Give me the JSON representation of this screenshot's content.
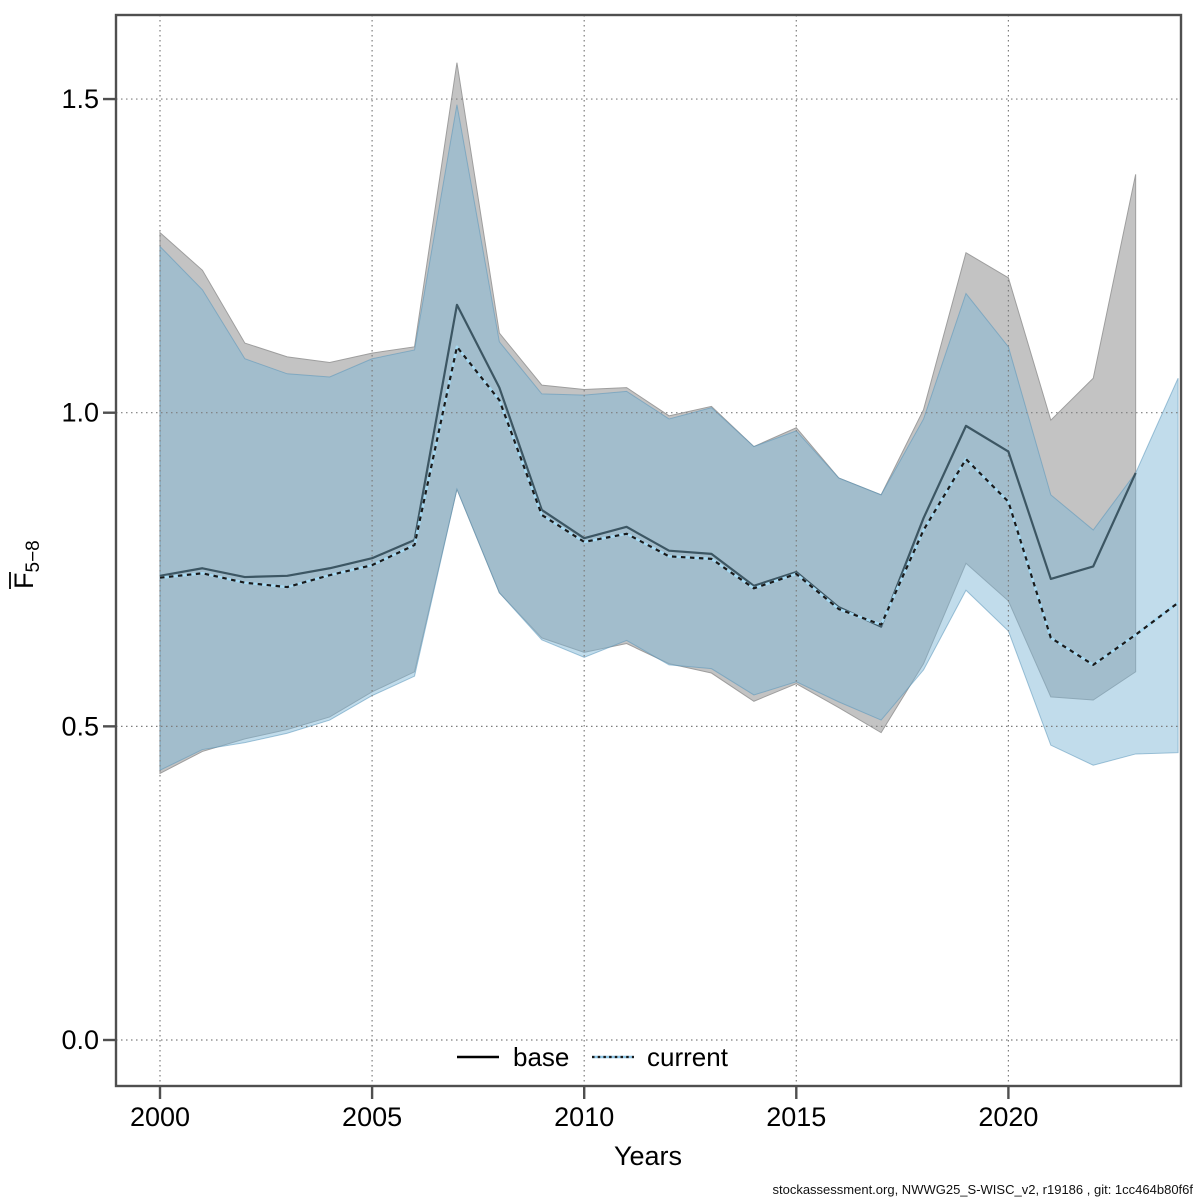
{
  "figure": {
    "xlabel": "Years",
    "ylabel": {
      "letter": "F",
      "bar": true,
      "sub": "5−8"
    },
    "footer": "stockassessment.org, NWWG25_S-WISC_v2, r19186 , git: 1cc464b80f6f",
    "legend": {
      "base": "base",
      "current": "current"
    }
  },
  "chart_data": {
    "type": "line",
    "title": "",
    "xlabel": "Years",
    "ylabel": "Fbar(5-8)",
    "xlim": [
      1998.9,
      2024.6
    ],
    "ylim": [
      -0.07,
      1.63
    ],
    "x_ticks": [
      2000,
      2005,
      2010,
      2015,
      2020
    ],
    "y_ticks": [
      0.0,
      0.5,
      1.0,
      1.5
    ],
    "grid": true,
    "grid_style": "dotted",
    "legend_position": "bottom-center",
    "series": [
      {
        "name": "base",
        "line_style": "solid",
        "band": "grey",
        "years": [
          2000,
          2001,
          2002,
          2003,
          2004,
          2005,
          2006,
          2007,
          2008,
          2009,
          2010,
          2011,
          2012,
          2013,
          2014,
          2015,
          2016,
          2017,
          2018,
          2019,
          2020,
          2021,
          2022,
          2023
        ],
        "values": [
          0.74,
          0.752,
          0.738,
          0.74,
          0.752,
          0.768,
          0.797,
          1.172,
          1.04,
          0.845,
          0.8,
          0.818,
          0.78,
          0.775,
          0.724,
          0.746,
          0.69,
          0.659,
          0.832,
          0.979,
          0.938,
          0.735,
          0.755,
          0.904
        ],
        "lower": [
          0.425,
          0.46,
          0.48,
          0.495,
          0.515,
          0.555,
          0.587,
          0.878,
          0.713,
          0.641,
          0.618,
          0.632,
          0.6,
          0.585,
          0.54,
          0.568,
          0.53,
          0.49,
          0.6,
          0.76,
          0.7,
          0.547,
          0.542,
          0.587
        ],
        "upper": [
          1.287,
          1.227,
          1.111,
          1.089,
          1.08,
          1.095,
          1.105,
          1.558,
          1.127,
          1.044,
          1.037,
          1.04,
          0.995,
          1.01,
          0.946,
          0.976,
          0.896,
          0.869,
          1.005,
          1.255,
          1.215,
          0.988,
          1.055,
          1.38
        ]
      },
      {
        "name": "current",
        "line_style": "dotted",
        "band": "blue",
        "years": [
          2000,
          2001,
          2002,
          2003,
          2004,
          2005,
          2006,
          2007,
          2008,
          2009,
          2010,
          2011,
          2012,
          2013,
          2014,
          2015,
          2016,
          2017,
          2018,
          2019,
          2020,
          2021,
          2022,
          2023,
          2024
        ],
        "values": [
          0.737,
          0.744,
          0.729,
          0.722,
          0.741,
          0.757,
          0.789,
          1.105,
          1.02,
          0.837,
          0.794,
          0.807,
          0.771,
          0.767,
          0.72,
          0.743,
          0.687,
          0.662,
          0.813,
          0.926,
          0.858,
          0.641,
          0.598,
          0.646,
          0.697
        ],
        "lower": [
          0.43,
          0.463,
          0.474,
          0.489,
          0.51,
          0.549,
          0.58,
          0.878,
          0.713,
          0.638,
          0.61,
          0.637,
          0.598,
          0.592,
          0.55,
          0.571,
          0.539,
          0.51,
          0.59,
          0.717,
          0.652,
          0.47,
          0.438,
          0.456,
          0.458
        ],
        "upper": [
          1.265,
          1.196,
          1.086,
          1.062,
          1.057,
          1.086,
          1.1,
          1.491,
          1.113,
          1.03,
          1.028,
          1.034,
          0.99,
          1.008,
          0.946,
          0.971,
          0.896,
          0.869,
          0.99,
          1.19,
          1.105,
          0.869,
          0.813,
          0.904,
          1.055
        ]
      }
    ]
  },
  "colors": {
    "base_band_fill": "#c3c3c3",
    "base_band_edge": "#9e9e9e",
    "current_band_fill": "rgba(125,181,213,0.48)",
    "current_band_edge": "rgba(90,150,185,0.55)",
    "base_line": "#3c5663",
    "current_line_dash": "#1a1a1a",
    "current_line_under": "#a6d9f2",
    "legend_base_line": "#000000",
    "legend_current_under": "#8ec6e6",
    "axis": "#4f4f4f",
    "grid": "#7d7d7d",
    "text": "#000000"
  }
}
